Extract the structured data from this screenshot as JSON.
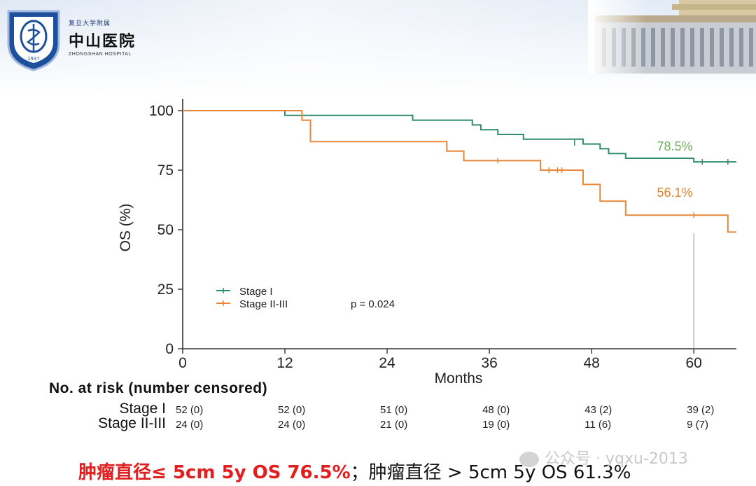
{
  "header": {
    "hospital_sub": "复旦大学附属",
    "hospital_cn": "中山医院",
    "hospital_en": "ZHONGSHAN HOSPITAL",
    "logo_year": "1937"
  },
  "chart_data": {
    "type": "line",
    "step": true,
    "title": "",
    "xlabel": "Months",
    "ylabel": "OS (%)",
    "xlim": [
      0,
      65
    ],
    "ylim": [
      0,
      105
    ],
    "x_ticks": [
      0,
      12,
      24,
      36,
      48,
      60
    ],
    "y_ticks": [
      0,
      25,
      50,
      75,
      100
    ],
    "legend_placement": "bottom-left",
    "p_value": "p = 0.024",
    "series": [
      {
        "name": "Stage I",
        "color": "#2e8b6e",
        "points": [
          [
            0,
            100
          ],
          [
            12,
            98
          ],
          [
            27,
            96
          ],
          [
            34,
            94
          ],
          [
            35,
            92
          ],
          [
            37,
            90
          ],
          [
            40,
            88
          ],
          [
            45,
            88
          ],
          [
            47,
            86
          ],
          [
            49,
            84
          ],
          [
            50,
            82
          ],
          [
            52,
            80
          ],
          [
            59,
            80
          ],
          [
            60,
            78.5
          ],
          [
            65,
            78.5
          ]
        ],
        "censors": [
          [
            46,
            86.5
          ],
          [
            61,
            78.5
          ],
          [
            64,
            78.5
          ]
        ],
        "annotation": "78.5%"
      },
      {
        "name": "Stage II-III",
        "color": "#e8873a",
        "points": [
          [
            0,
            100
          ],
          [
            14,
            96
          ],
          [
            15,
            87
          ],
          [
            31,
            83
          ],
          [
            33,
            79
          ],
          [
            42,
            75
          ],
          [
            47,
            69
          ],
          [
            49,
            62
          ],
          [
            52,
            56.1
          ],
          [
            64,
            49
          ],
          [
            65,
            49
          ]
        ],
        "censors": [
          [
            37,
            79
          ],
          [
            43,
            75
          ],
          [
            44,
            75
          ],
          [
            44.5,
            75
          ],
          [
            60,
            56.1
          ]
        ],
        "annotation": "56.1%"
      }
    ],
    "risk_table": {
      "title": "No. at risk (number censored)",
      "times": [
        0,
        12,
        24,
        36,
        48,
        60
      ],
      "rows": [
        {
          "label": "Stage I",
          "values": [
            "52 (0)",
            "52 (0)",
            "51 (0)",
            "48 (0)",
            "43 (2)",
            "39 (2)"
          ]
        },
        {
          "label": "Stage II-III",
          "values": [
            "24 (0)",
            "24 (0)",
            "21 (0)",
            "19 (0)",
            "11 (6)",
            "9 (7)"
          ]
        }
      ]
    }
  },
  "footer": {
    "red_text": "肿瘤直径≤ 5cm 5y OS 76.5%",
    "black_text": "；肿瘤直径 > 5cm 5y OS 61.3%"
  },
  "watermark": {
    "text": "公众号 · yqxu-2013"
  }
}
